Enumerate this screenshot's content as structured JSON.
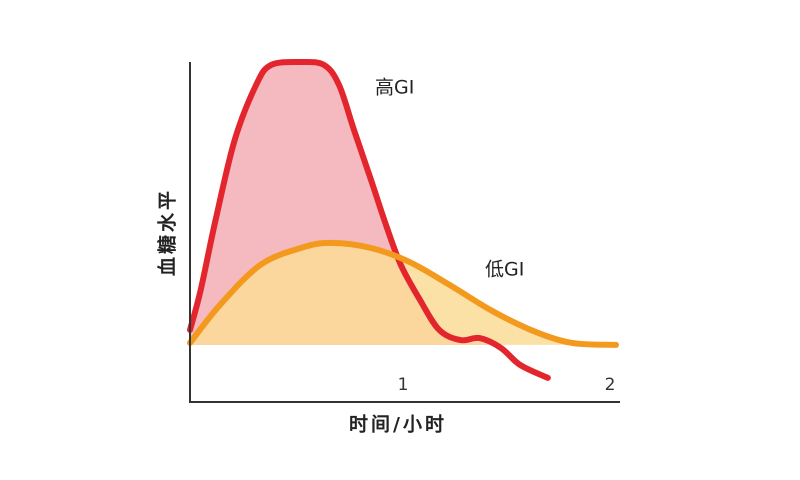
{
  "chart_data": {
    "type": "area",
    "x_label": "时间/小时",
    "y_label": "血糖水平",
    "xlim": [
      0,
      2
    ],
    "ylim": [
      0,
      100
    ],
    "xticks": [
      1,
      2
    ],
    "series": [
      {
        "name": "高GI",
        "color": "#e3262e",
        "fill": "#f3b3b8",
        "x": [
          0,
          0.05,
          0.12,
          0.21,
          0.31,
          0.38,
          0.52,
          0.63,
          0.7,
          0.77,
          0.85,
          0.92,
          0.99,
          1.08,
          1.17,
          1.27,
          1.36,
          1.46,
          1.55,
          1.68
        ],
        "values": [
          21.2,
          32.9,
          53.5,
          77.1,
          93.2,
          99.1,
          100,
          99.1,
          93.2,
          80,
          65.3,
          52.1,
          40.3,
          30,
          21.2,
          18.2,
          18.8,
          15.9,
          10.9,
          7.1
        ]
      },
      {
        "name": "低GI",
        "color": "#f39a1e",
        "fill": "#fbdc98",
        "x": [
          0,
          0.14,
          0.33,
          0.52,
          0.66,
          0.85,
          1.03,
          1.22,
          1.41,
          1.6,
          1.79,
          2.0
        ],
        "values": [
          17.4,
          28.5,
          40.3,
          45.3,
          46.8,
          45.3,
          41.2,
          34.4,
          27.1,
          21.2,
          17.4,
          16.8
        ]
      }
    ]
  }
}
